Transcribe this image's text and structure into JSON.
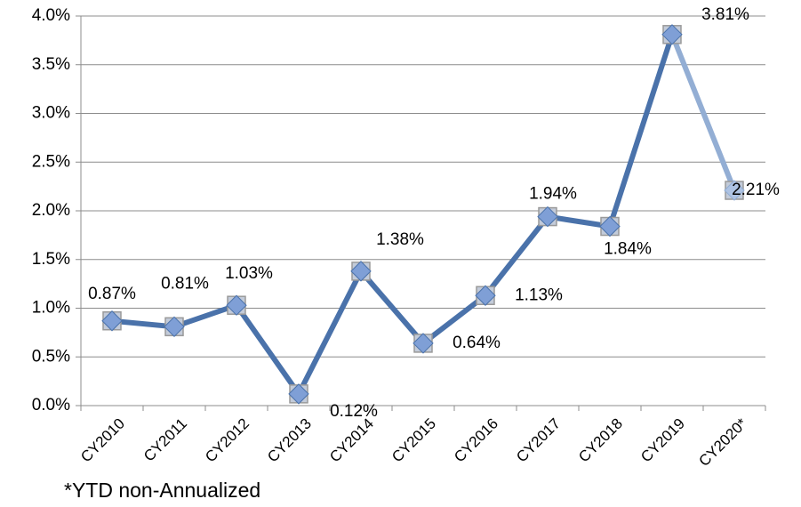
{
  "chart_data": {
    "type": "line",
    "categories": [
      "CY2010",
      "CY2011",
      "CY2012",
      "CY2013",
      "CY2014",
      "CY2015",
      "CY2016",
      "CY2017",
      "CY2018",
      "CY2019",
      "CY2020*"
    ],
    "series": [
      {
        "color": "#4a72aa",
        "last_color": "#93aed4",
        "values": [
          0.87,
          0.81,
          1.03,
          0.12,
          1.38,
          0.64,
          1.13,
          1.94,
          1.84,
          3.81,
          2.21
        ],
        "value_labels": [
          "0.87%",
          "0.81%",
          "1.03%",
          "0.12%",
          "1.38%",
          "0.64%",
          "1.13%",
          "1.94%",
          "1.84%",
          "3.81%",
          "2.21%"
        ]
      }
    ],
    "ylim": [
      0,
      4
    ],
    "yticks": [
      {
        "value": 0,
        "label": "0.0%"
      },
      {
        "value": 0.5,
        "label": "0.5%"
      },
      {
        "value": 1,
        "label": "1.0%"
      },
      {
        "value": 1.5,
        "label": "1.5%"
      },
      {
        "value": 2,
        "label": "2.0%"
      },
      {
        "value": 2.5,
        "label": "2.5%"
      },
      {
        "value": 3,
        "label": "3.0%"
      },
      {
        "value": 3.5,
        "label": "3.5%"
      },
      {
        "value": 4,
        "label": "4.0%"
      }
    ],
    "grid": true,
    "footnote": "*YTD non-Annualized"
  }
}
